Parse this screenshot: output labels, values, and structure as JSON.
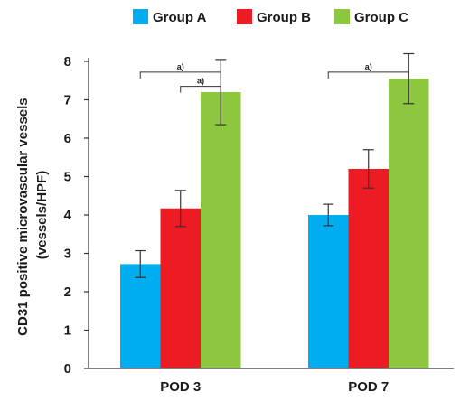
{
  "chart_data": {
    "type": "bar",
    "categories": [
      "POD 3",
      "POD 7"
    ],
    "series": [
      {
        "name": "Group A",
        "color": "#00aeef",
        "values": [
          2.72,
          4.0
        ],
        "errors": [
          0.35,
          0.28
        ]
      },
      {
        "name": "Group B",
        "color": "#ed1c24",
        "values": [
          4.17,
          5.2
        ],
        "errors": [
          0.47,
          0.5
        ]
      },
      {
        "name": "Group C",
        "color": "#8dc63f",
        "values": [
          7.2,
          7.55
        ],
        "errors": [
          0.85,
          0.65
        ]
      }
    ],
    "ylabel_line1": "CD31 positive microvascular vessels",
    "ylabel_line2": "(vessels/HPF)",
    "ylim": [
      0,
      8
    ],
    "yticks": [
      0,
      1,
      2,
      3,
      4,
      5,
      6,
      7,
      8
    ],
    "grid": false,
    "legend": "top",
    "annotations": [
      {
        "category": 0,
        "from_series": 0,
        "to_series": 2,
        "y": 7.72,
        "text": "a)"
      },
      {
        "category": 0,
        "from_series": 1,
        "to_series": 2,
        "y": 7.35,
        "text": "a)"
      },
      {
        "category": 1,
        "from_series": 0,
        "to_series": 2,
        "y": 7.72,
        "text": "a)"
      }
    ]
  }
}
